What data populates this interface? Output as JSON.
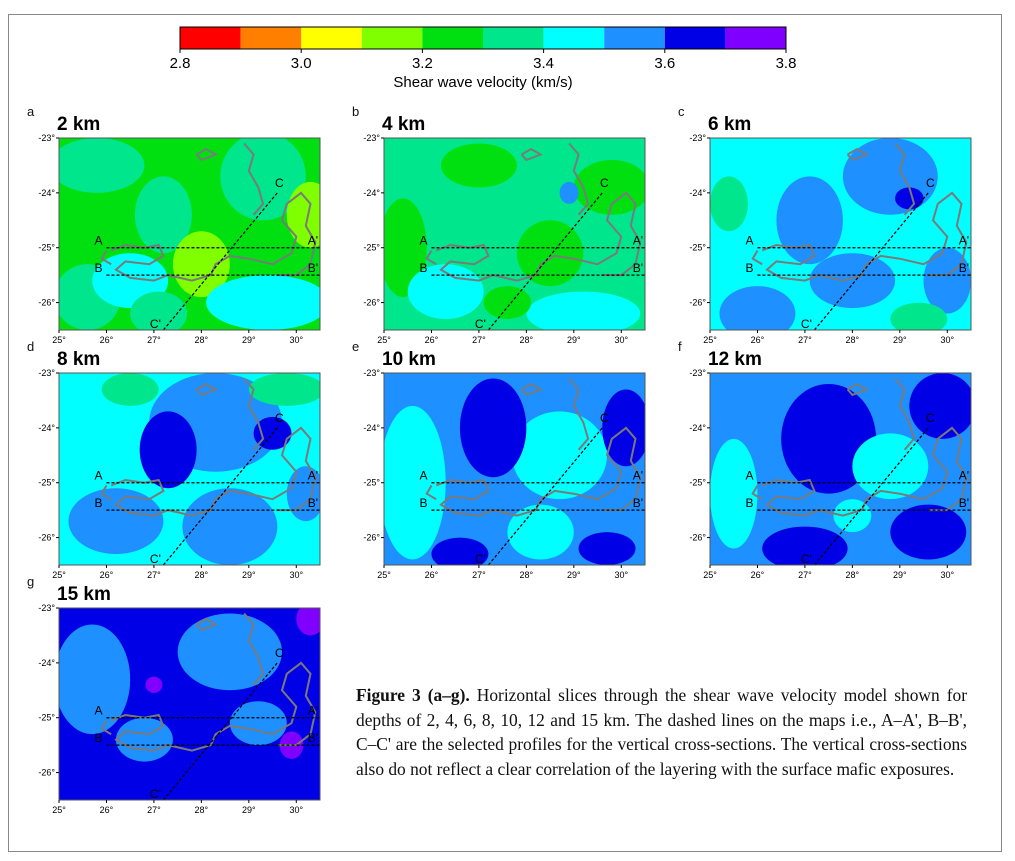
{
  "colorbar": {
    "title": "Shear wave velocity (km/s)",
    "min": 2.8,
    "max": 3.8,
    "step": 0.1,
    "ticks": [
      "2.8",
      "3.0",
      "3.2",
      "3.4",
      "3.6",
      "3.8"
    ],
    "colors": [
      "#ff0000",
      "#ff8000",
      "#ffff00",
      "#80ff00",
      "#00e010",
      "#00e68c",
      "#00ffff",
      "#1e90ff",
      "#0000e6",
      "#8000ff"
    ]
  },
  "axes": {
    "x_ticks": [
      "25°",
      "26°",
      "27°",
      "28°",
      "29°",
      "30°"
    ],
    "y_ticks": [
      "-23°",
      "-24°",
      "-25°",
      "-26°"
    ],
    "x_range": [
      25,
      30.5
    ],
    "y_range": [
      -26.5,
      -23
    ]
  },
  "profiles": [
    {
      "start_label": "A",
      "end_label": "A'",
      "start": [
        26.0,
        -25.0
      ],
      "end": [
        30.5,
        -25.0
      ]
    },
    {
      "start_label": "B",
      "end_label": "B'",
      "start": [
        26.0,
        -25.5
      ],
      "end": [
        30.5,
        -25.5
      ]
    },
    {
      "start_label": "C'",
      "end_label": "C",
      "start": [
        27.2,
        -26.5
      ],
      "end": [
        29.6,
        -24.0
      ]
    }
  ],
  "panels": [
    {
      "letter": "a",
      "depth": "2 km",
      "base": "#00e010",
      "blobs": [
        {
          "x": 25.6,
          "y": -25.9,
          "rx": 0.7,
          "ry": 0.6,
          "c": "#00e68c"
        },
        {
          "x": 25.8,
          "y": -23.5,
          "rx": 1.0,
          "ry": 0.5,
          "c": "#00e68c"
        },
        {
          "x": 27.2,
          "y": -24.4,
          "rx": 0.6,
          "ry": 0.7,
          "c": "#00e68c"
        },
        {
          "x": 29.3,
          "y": -23.7,
          "rx": 0.9,
          "ry": 0.8,
          "c": "#00e68c"
        },
        {
          "x": 30.3,
          "y": -24.4,
          "rx": 0.5,
          "ry": 0.6,
          "c": "#80ff00"
        },
        {
          "x": 28.0,
          "y": -25.3,
          "rx": 0.6,
          "ry": 0.6,
          "c": "#80ff00"
        },
        {
          "x": 26.5,
          "y": -25.6,
          "rx": 0.8,
          "ry": 0.5,
          "c": "#00ffff"
        },
        {
          "x": 29.4,
          "y": -26.0,
          "rx": 1.3,
          "ry": 0.5,
          "c": "#00ffff"
        },
        {
          "x": 27.1,
          "y": -26.2,
          "rx": 0.6,
          "ry": 0.4,
          "c": "#00e68c"
        }
      ]
    },
    {
      "letter": "b",
      "depth": "4 km",
      "base": "#00e68c",
      "blobs": [
        {
          "x": 25.4,
          "y": -25.0,
          "rx": 0.5,
          "ry": 0.9,
          "c": "#00e010"
        },
        {
          "x": 27.0,
          "y": -23.5,
          "rx": 0.8,
          "ry": 0.4,
          "c": "#00e010"
        },
        {
          "x": 29.8,
          "y": -23.9,
          "rx": 0.8,
          "ry": 0.5,
          "c": "#00e010"
        },
        {
          "x": 28.5,
          "y": -25.1,
          "rx": 0.7,
          "ry": 0.6,
          "c": "#00e010"
        },
        {
          "x": 26.3,
          "y": -25.8,
          "rx": 0.8,
          "ry": 0.5,
          "c": "#00ffff"
        },
        {
          "x": 29.2,
          "y": -26.2,
          "rx": 1.2,
          "ry": 0.4,
          "c": "#00ffff"
        },
        {
          "x": 28.9,
          "y": -24.0,
          "rx": 0.2,
          "ry": 0.2,
          "c": "#1e90ff"
        },
        {
          "x": 27.6,
          "y": -26.0,
          "rx": 0.5,
          "ry": 0.3,
          "c": "#00e010"
        }
      ]
    },
    {
      "letter": "c",
      "depth": "6 km",
      "base": "#00ffff",
      "blobs": [
        {
          "x": 28.8,
          "y": -23.7,
          "rx": 1.0,
          "ry": 0.7,
          "c": "#1e90ff"
        },
        {
          "x": 27.1,
          "y": -24.5,
          "rx": 0.7,
          "ry": 0.8,
          "c": "#1e90ff"
        },
        {
          "x": 29.2,
          "y": -24.1,
          "rx": 0.3,
          "ry": 0.2,
          "c": "#0000e6"
        },
        {
          "x": 25.4,
          "y": -24.2,
          "rx": 0.4,
          "ry": 0.5,
          "c": "#00e68c"
        },
        {
          "x": 28.0,
          "y": -25.6,
          "rx": 0.9,
          "ry": 0.5,
          "c": "#1e90ff"
        },
        {
          "x": 26.0,
          "y": -26.2,
          "rx": 0.8,
          "ry": 0.5,
          "c": "#1e90ff"
        },
        {
          "x": 30.0,
          "y": -25.6,
          "rx": 0.5,
          "ry": 0.6,
          "c": "#1e90ff"
        },
        {
          "x": 29.4,
          "y": -26.3,
          "rx": 0.6,
          "ry": 0.3,
          "c": "#00e68c"
        }
      ]
    },
    {
      "letter": "d",
      "depth": "8 km",
      "base": "#00ffff",
      "blobs": [
        {
          "x": 28.3,
          "y": -23.9,
          "rx": 1.4,
          "ry": 0.9,
          "c": "#1e90ff"
        },
        {
          "x": 27.3,
          "y": -24.4,
          "rx": 0.6,
          "ry": 0.7,
          "c": "#0000e6"
        },
        {
          "x": 29.5,
          "y": -24.1,
          "rx": 0.4,
          "ry": 0.3,
          "c": "#0000e6"
        },
        {
          "x": 26.2,
          "y": -25.7,
          "rx": 1.0,
          "ry": 0.6,
          "c": "#1e90ff"
        },
        {
          "x": 28.6,
          "y": -25.8,
          "rx": 1.0,
          "ry": 0.7,
          "c": "#1e90ff"
        },
        {
          "x": 30.2,
          "y": -25.2,
          "rx": 0.4,
          "ry": 0.5,
          "c": "#1e90ff"
        },
        {
          "x": 29.8,
          "y": -23.3,
          "rx": 0.8,
          "ry": 0.3,
          "c": "#00e68c"
        },
        {
          "x": 26.5,
          "y": -23.3,
          "rx": 0.6,
          "ry": 0.3,
          "c": "#00e68c"
        }
      ]
    },
    {
      "letter": "e",
      "depth": "10 km",
      "base": "#1e90ff",
      "blobs": [
        {
          "x": 25.6,
          "y": -25.0,
          "rx": 0.7,
          "ry": 1.4,
          "c": "#00ffff"
        },
        {
          "x": 28.7,
          "y": -24.5,
          "rx": 1.0,
          "ry": 0.8,
          "c": "#00ffff"
        },
        {
          "x": 27.3,
          "y": -24.0,
          "rx": 0.7,
          "ry": 0.9,
          "c": "#0000e6"
        },
        {
          "x": 30.1,
          "y": -24.0,
          "rx": 0.5,
          "ry": 0.7,
          "c": "#0000e6"
        },
        {
          "x": 28.3,
          "y": -25.9,
          "rx": 0.7,
          "ry": 0.5,
          "c": "#00ffff"
        },
        {
          "x": 26.6,
          "y": -26.3,
          "rx": 0.6,
          "ry": 0.3,
          "c": "#0000e6"
        },
        {
          "x": 29.7,
          "y": -26.2,
          "rx": 0.6,
          "ry": 0.3,
          "c": "#0000e6"
        }
      ]
    },
    {
      "letter": "f",
      "depth": "12 km",
      "base": "#1e90ff",
      "blobs": [
        {
          "x": 27.5,
          "y": -24.2,
          "rx": 1.0,
          "ry": 1.0,
          "c": "#0000e6"
        },
        {
          "x": 29.9,
          "y": -23.6,
          "rx": 0.7,
          "ry": 0.6,
          "c": "#0000e6"
        },
        {
          "x": 25.5,
          "y": -25.2,
          "rx": 0.5,
          "ry": 1.0,
          "c": "#00ffff"
        },
        {
          "x": 28.8,
          "y": -24.7,
          "rx": 0.8,
          "ry": 0.6,
          "c": "#00ffff"
        },
        {
          "x": 27.0,
          "y": -26.2,
          "rx": 0.9,
          "ry": 0.4,
          "c": "#0000e6"
        },
        {
          "x": 29.6,
          "y": -25.9,
          "rx": 0.8,
          "ry": 0.5,
          "c": "#0000e6"
        },
        {
          "x": 28.0,
          "y": -25.6,
          "rx": 0.4,
          "ry": 0.3,
          "c": "#00ffff"
        }
      ]
    },
    {
      "letter": "g",
      "depth": "15 km",
      "base": "#0000e6",
      "blobs": [
        {
          "x": 25.7,
          "y": -24.3,
          "rx": 0.8,
          "ry": 1.0,
          "c": "#1e90ff"
        },
        {
          "x": 28.6,
          "y": -23.8,
          "rx": 1.1,
          "ry": 0.7,
          "c": "#1e90ff"
        },
        {
          "x": 26.8,
          "y": -25.4,
          "rx": 0.6,
          "ry": 0.4,
          "c": "#1e90ff"
        },
        {
          "x": 30.3,
          "y": -23.2,
          "rx": 0.3,
          "ry": 0.3,
          "c": "#8000ff"
        },
        {
          "x": 27.0,
          "y": -24.4,
          "rx": 0.18,
          "ry": 0.15,
          "c": "#8000ff"
        },
        {
          "x": 29.9,
          "y": -25.5,
          "rx": 0.25,
          "ry": 0.25,
          "c": "#8000ff"
        },
        {
          "x": 29.2,
          "y": -25.1,
          "rx": 0.6,
          "ry": 0.4,
          "c": "#1e90ff"
        }
      ]
    }
  ],
  "caption": {
    "label": "Figure 3 (a–g).",
    "text": "Horizontal slices through the shear wave velocity model shown for depths of 2, 4, 6, 8, 10, 12 and 15 km. The dashed lines on the maps i.e., A–A', B–B', C–C' are the selected profiles for the vertical cross-sections. The vertical cross-sections also do not reflect a clear correlation of the layering with the surface mafic exposures."
  }
}
